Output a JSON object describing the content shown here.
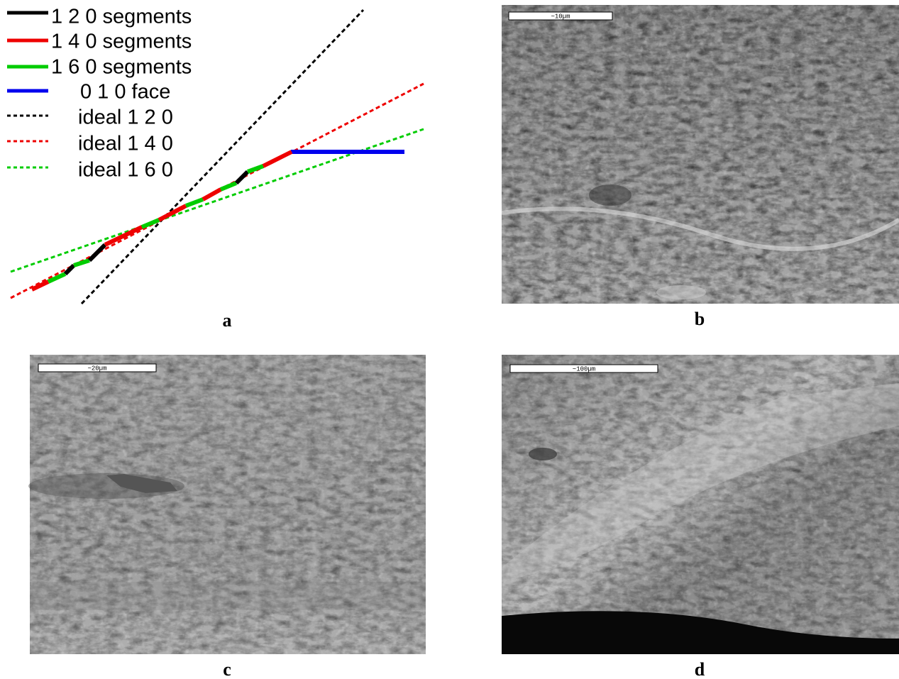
{
  "panels": [
    {
      "label": "a",
      "legend": [
        "1 2 0 segments",
        "1 4 0 segments",
        "1 6 0 segments",
        "0 1 0 face",
        "ideal 1 2 0",
        "ideal 1 4 0",
        "ideal 1 6 0"
      ]
    },
    {
      "label": "b",
      "scale_bar": "~10µm"
    },
    {
      "label": "c",
      "scale_bar": "~20µm"
    },
    {
      "label": "d",
      "scale_bar": "~100µm"
    }
  ]
}
